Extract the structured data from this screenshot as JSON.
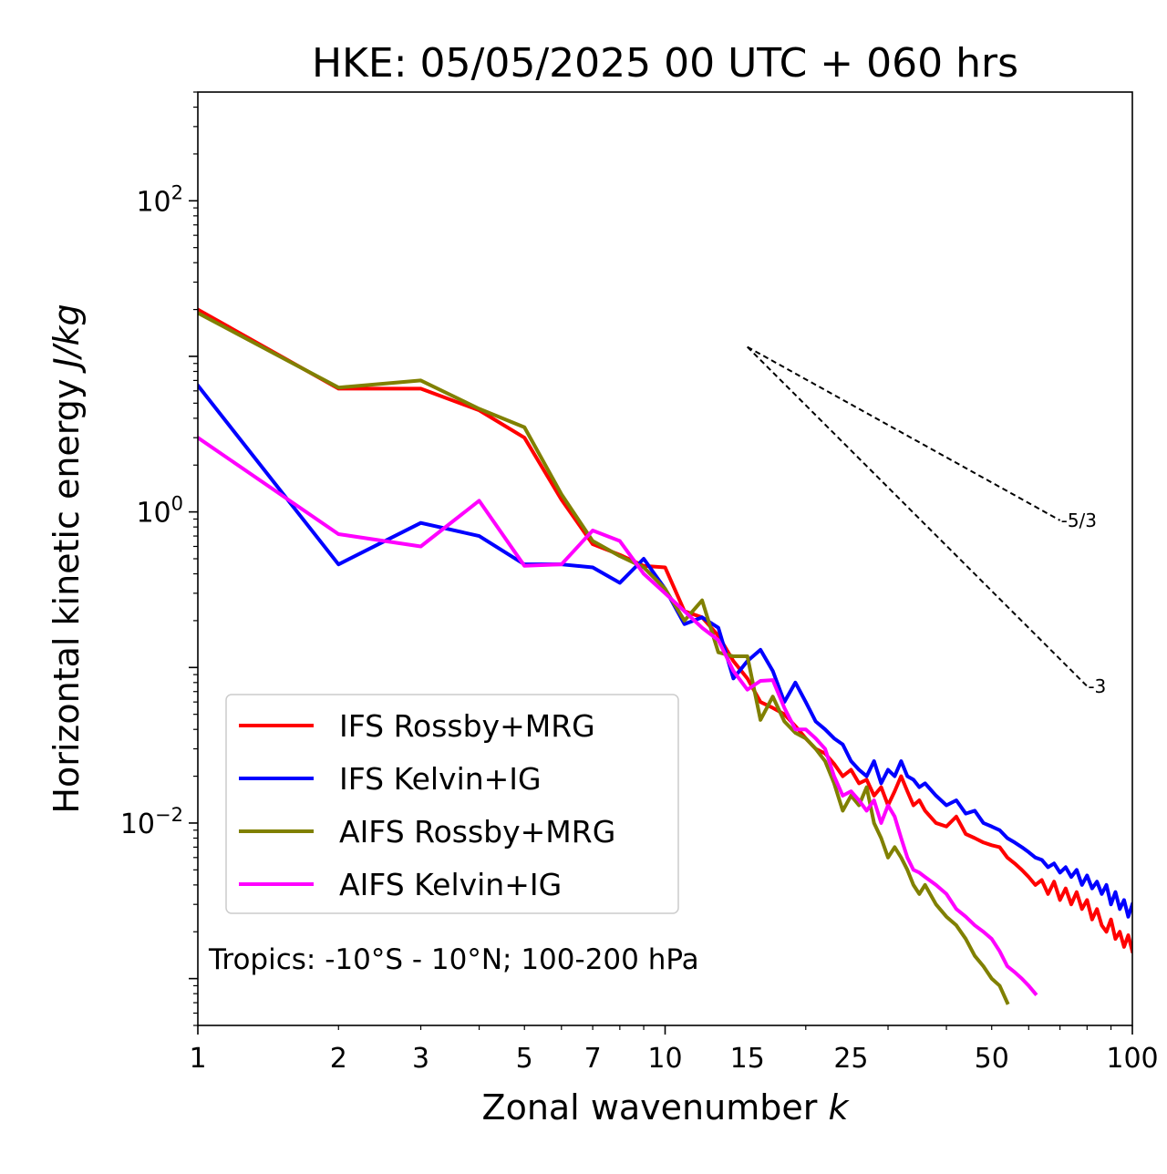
{
  "chart_data": {
    "type": "line",
    "title": "HKE: 05/05/2025 00 UTC + 060 hrs",
    "xlabel": "Zonal wavenumber k",
    "xlabel_parts": [
      "Zonal wavenumber ",
      "k"
    ],
    "ylabel": "Horizontal kinetic energy J/kg",
    "ylabel_parts": [
      "Horizontal kinetic energy ",
      "J/kg"
    ],
    "xscale": "log",
    "yscale": "log",
    "xlim": [
      1,
      100
    ],
    "ylim": [
      0.0005,
      500
    ],
    "x_ticks": [
      {
        "value": 1,
        "label": "1"
      },
      {
        "value": 2,
        "label": "2"
      },
      {
        "value": 3,
        "label": "3"
      },
      {
        "value": 5,
        "label": "5"
      },
      {
        "value": 7,
        "label": "7"
      },
      {
        "value": 10,
        "label": "10"
      },
      {
        "value": 15,
        "label": "15"
      },
      {
        "value": 25,
        "label": "25"
      },
      {
        "value": 50,
        "label": "50"
      },
      {
        "value": 100,
        "label": "100"
      }
    ],
    "y_ticks": [
      {
        "value": 0.01,
        "base": "10",
        "exp": "−2"
      },
      {
        "value": 1,
        "base": "10",
        "exp": "0"
      },
      {
        "value": 100,
        "base": "10",
        "exp": "2"
      }
    ],
    "grid": false,
    "legend_position": "lower-left",
    "annotation": "Tropics: -10°S - 10°N; 100-200 hPa",
    "reference_slopes": [
      {
        "label": "-5/3",
        "slope": -1.6667,
        "x": [
          15,
          70
        ],
        "y_start": 11.5
      },
      {
        "label": "-3",
        "slope": -3,
        "x": [
          15,
          80
        ],
        "y_start": 11.5
      }
    ],
    "series": [
      {
        "name": "IFS Rossby+MRG",
        "color": "#ff0000",
        "points": [
          [
            1,
            20
          ],
          [
            2,
            6.2
          ],
          [
            3,
            6.2
          ],
          [
            4,
            4.5
          ],
          [
            5,
            3.0
          ],
          [
            6,
            1.2
          ],
          [
            7,
            0.62
          ],
          [
            8,
            0.53
          ],
          [
            9,
            0.45
          ],
          [
            10,
            0.44
          ],
          [
            11,
            0.23
          ],
          [
            12,
            0.21
          ],
          [
            13,
            0.16
          ],
          [
            14,
            0.11
          ],
          [
            15,
            0.085
          ],
          [
            16,
            0.06
          ],
          [
            17,
            0.055
          ],
          [
            18,
            0.05
          ],
          [
            19,
            0.042
          ],
          [
            20,
            0.035
          ],
          [
            21,
            0.03
          ],
          [
            22,
            0.028
          ],
          [
            23,
            0.024
          ],
          [
            24,
            0.02
          ],
          [
            25,
            0.022
          ],
          [
            26,
            0.018
          ],
          [
            27,
            0.019
          ],
          [
            28,
            0.015
          ],
          [
            29,
            0.017
          ],
          [
            30,
            0.013
          ],
          [
            31,
            0.016
          ],
          [
            32,
            0.02
          ],
          [
            33,
            0.016
          ],
          [
            34,
            0.013
          ],
          [
            35,
            0.014
          ],
          [
            36,
            0.012
          ],
          [
            38,
            0.01
          ],
          [
            40,
            0.0095
          ],
          [
            42,
            0.011
          ],
          [
            44,
            0.0085
          ],
          [
            46,
            0.008
          ],
          [
            48,
            0.0075
          ],
          [
            50,
            0.0072
          ],
          [
            52,
            0.007
          ],
          [
            54,
            0.006
          ],
          [
            56,
            0.0055
          ],
          [
            58,
            0.005
          ],
          [
            60,
            0.0045
          ],
          [
            62,
            0.004
          ],
          [
            64,
            0.0043
          ],
          [
            66,
            0.0035
          ],
          [
            68,
            0.0042
          ],
          [
            70,
            0.0032
          ],
          [
            72,
            0.0038
          ],
          [
            74,
            0.003
          ],
          [
            76,
            0.0036
          ],
          [
            78,
            0.0028
          ],
          [
            80,
            0.0032
          ],
          [
            82,
            0.0024
          ],
          [
            84,
            0.0028
          ],
          [
            86,
            0.0022
          ],
          [
            88,
            0.002
          ],
          [
            90,
            0.0024
          ],
          [
            92,
            0.0018
          ],
          [
            94,
            0.002
          ],
          [
            96,
            0.0016
          ],
          [
            98,
            0.0019
          ],
          [
            100,
            0.0015
          ]
        ]
      },
      {
        "name": "IFS Kelvin+IG",
        "color": "#0000ff",
        "points": [
          [
            1,
            6.5
          ],
          [
            2,
            0.46
          ],
          [
            3,
            0.85
          ],
          [
            4,
            0.7
          ],
          [
            5,
            0.46
          ],
          [
            6,
            0.46
          ],
          [
            7,
            0.44
          ],
          [
            8,
            0.35
          ],
          [
            9,
            0.5
          ],
          [
            10,
            0.32
          ],
          [
            11,
            0.19
          ],
          [
            12,
            0.21
          ],
          [
            13,
            0.18
          ],
          [
            14,
            0.085
          ],
          [
            15,
            0.11
          ],
          [
            16,
            0.13
          ],
          [
            17,
            0.095
          ],
          [
            18,
            0.06
          ],
          [
            19,
            0.08
          ],
          [
            20,
            0.06
          ],
          [
            21,
            0.045
          ],
          [
            22,
            0.04
          ],
          [
            23,
            0.035
          ],
          [
            24,
            0.032
          ],
          [
            25,
            0.025
          ],
          [
            26,
            0.022
          ],
          [
            27,
            0.02
          ],
          [
            28,
            0.025
          ],
          [
            29,
            0.018
          ],
          [
            30,
            0.022
          ],
          [
            31,
            0.02
          ],
          [
            32,
            0.025
          ],
          [
            33,
            0.02
          ],
          [
            34,
            0.019
          ],
          [
            35,
            0.017
          ],
          [
            36,
            0.018
          ],
          [
            38,
            0.015
          ],
          [
            40,
            0.013
          ],
          [
            42,
            0.014
          ],
          [
            44,
            0.0115
          ],
          [
            46,
            0.012
          ],
          [
            48,
            0.01
          ],
          [
            50,
            0.0095
          ],
          [
            52,
            0.009
          ],
          [
            54,
            0.008
          ],
          [
            56,
            0.0075
          ],
          [
            58,
            0.007
          ],
          [
            60,
            0.0065
          ],
          [
            62,
            0.006
          ],
          [
            64,
            0.0058
          ],
          [
            66,
            0.0052
          ],
          [
            68,
            0.0055
          ],
          [
            70,
            0.0048
          ],
          [
            72,
            0.0052
          ],
          [
            74,
            0.0045
          ],
          [
            76,
            0.005
          ],
          [
            78,
            0.004
          ],
          [
            80,
            0.0046
          ],
          [
            82,
            0.0038
          ],
          [
            84,
            0.0042
          ],
          [
            86,
            0.0035
          ],
          [
            88,
            0.004
          ],
          [
            90,
            0.003
          ],
          [
            92,
            0.0036
          ],
          [
            94,
            0.0028
          ],
          [
            96,
            0.0032
          ],
          [
            98,
            0.0025
          ],
          [
            100,
            0.003
          ]
        ]
      },
      {
        "name": "AIFS Rossby+MRG",
        "color": "#808000",
        "points": [
          [
            1,
            19
          ],
          [
            2,
            6.3
          ],
          [
            3,
            7.0
          ],
          [
            4,
            4.6
          ],
          [
            5,
            3.5
          ],
          [
            6,
            1.3
          ],
          [
            7,
            0.65
          ],
          [
            8,
            0.52
          ],
          [
            9,
            0.44
          ],
          [
            10,
            0.32
          ],
          [
            11,
            0.2
          ],
          [
            12,
            0.27
          ],
          [
            13,
            0.125
          ],
          [
            14,
            0.118
          ],
          [
            15,
            0.118
          ],
          [
            16,
            0.046
          ],
          [
            17,
            0.065
          ],
          [
            18,
            0.045
          ],
          [
            19,
            0.038
          ],
          [
            20,
            0.035
          ],
          [
            21,
            0.03
          ],
          [
            22,
            0.025
          ],
          [
            23,
            0.018
          ],
          [
            24,
            0.012
          ],
          [
            25,
            0.015
          ],
          [
            26,
            0.013
          ],
          [
            27,
            0.017
          ],
          [
            28,
            0.01
          ],
          [
            29,
            0.008
          ],
          [
            30,
            0.006
          ],
          [
            31,
            0.007
          ],
          [
            32,
            0.006
          ],
          [
            33,
            0.005
          ],
          [
            34,
            0.004
          ],
          [
            35,
            0.0035
          ],
          [
            36,
            0.004
          ],
          [
            38,
            0.003
          ],
          [
            40,
            0.0025
          ],
          [
            42,
            0.0022
          ],
          [
            44,
            0.0018
          ],
          [
            46,
            0.0014
          ],
          [
            48,
            0.0012
          ],
          [
            50,
            0.001
          ],
          [
            52,
            0.0009
          ],
          [
            54,
            0.0007
          ]
        ]
      },
      {
        "name": "AIFS Kelvin+IG",
        "color": "#ff00ff",
        "points": [
          [
            1,
            3.0
          ],
          [
            2,
            0.72
          ],
          [
            3,
            0.6
          ],
          [
            4,
            1.18
          ],
          [
            5,
            0.45
          ],
          [
            6,
            0.46
          ],
          [
            7,
            0.76
          ],
          [
            8,
            0.65
          ],
          [
            9,
            0.4
          ],
          [
            10,
            0.3
          ],
          [
            11,
            0.23
          ],
          [
            12,
            0.18
          ],
          [
            13,
            0.15
          ],
          [
            14,
            0.095
          ],
          [
            15,
            0.072
          ],
          [
            16,
            0.082
          ],
          [
            17,
            0.083
          ],
          [
            18,
            0.055
          ],
          [
            19,
            0.04
          ],
          [
            20,
            0.04
          ],
          [
            21,
            0.035
          ],
          [
            22,
            0.03
          ],
          [
            23,
            0.02
          ],
          [
            24,
            0.015
          ],
          [
            25,
            0.016
          ],
          [
            26,
            0.014
          ],
          [
            27,
            0.012
          ],
          [
            28,
            0.014
          ],
          [
            29,
            0.01
          ],
          [
            30,
            0.013
          ],
          [
            31,
            0.011
          ],
          [
            32,
            0.008
          ],
          [
            33,
            0.006
          ],
          [
            34,
            0.005
          ],
          [
            35,
            0.0048
          ],
          [
            36,
            0.0045
          ],
          [
            38,
            0.004
          ],
          [
            40,
            0.0035
          ],
          [
            42,
            0.0028
          ],
          [
            44,
            0.0025
          ],
          [
            46,
            0.0022
          ],
          [
            48,
            0.002
          ],
          [
            50,
            0.0018
          ],
          [
            52,
            0.0015
          ],
          [
            54,
            0.0012
          ],
          [
            56,
            0.0011
          ],
          [
            58,
            0.001
          ],
          [
            60,
            0.0009
          ],
          [
            62,
            0.0008
          ]
        ]
      }
    ]
  }
}
